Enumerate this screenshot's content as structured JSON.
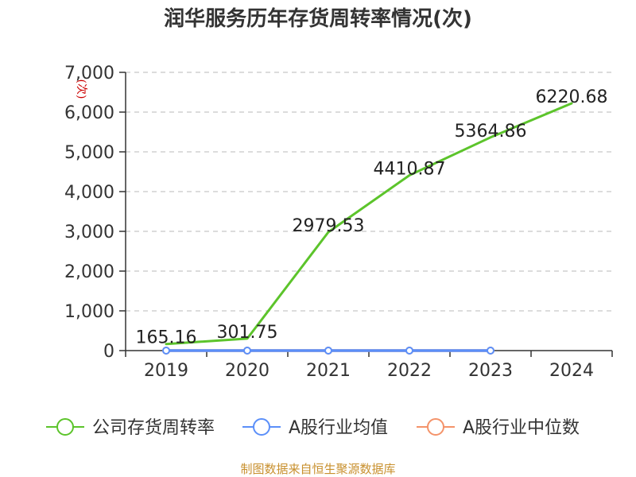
{
  "title": "润华服务历年存货周转率情况(次)",
  "source": "制图数据来自恒生聚源数据库",
  "source_color": "#c8902e",
  "chart_data": {
    "type": "line",
    "categories": [
      "2019",
      "2020",
      "2021",
      "2022",
      "2023",
      "2024"
    ],
    "ylim": [
      0,
      7000
    ],
    "yticks": [
      0,
      1000,
      2000,
      3000,
      4000,
      5000,
      6000,
      7000
    ],
    "ytick_labels": [
      "0",
      "1,000",
      "2,000",
      "3,000",
      "4,000",
      "5,000",
      "6,000",
      "7,000"
    ],
    "ylabel": "(次)",
    "grid": true,
    "legend_position": "bottom",
    "series": [
      {
        "name": "公司存货周转率",
        "color": "#5cc42b",
        "values": [
          165.16,
          301.75,
          2979.53,
          4410.87,
          5364.86,
          6220.68
        ],
        "labels": [
          "165.16",
          "301.75",
          "2979.53",
          "4410.87",
          "5364.86",
          "6220.68"
        ]
      },
      {
        "name": "A股行业均值",
        "color": "#5b8ff9",
        "values": [
          0,
          0,
          0,
          0,
          0,
          null
        ]
      },
      {
        "name": "A股行业中位数",
        "color": "#f4936a",
        "values": [
          0,
          0,
          0,
          0,
          0,
          null
        ]
      }
    ]
  }
}
